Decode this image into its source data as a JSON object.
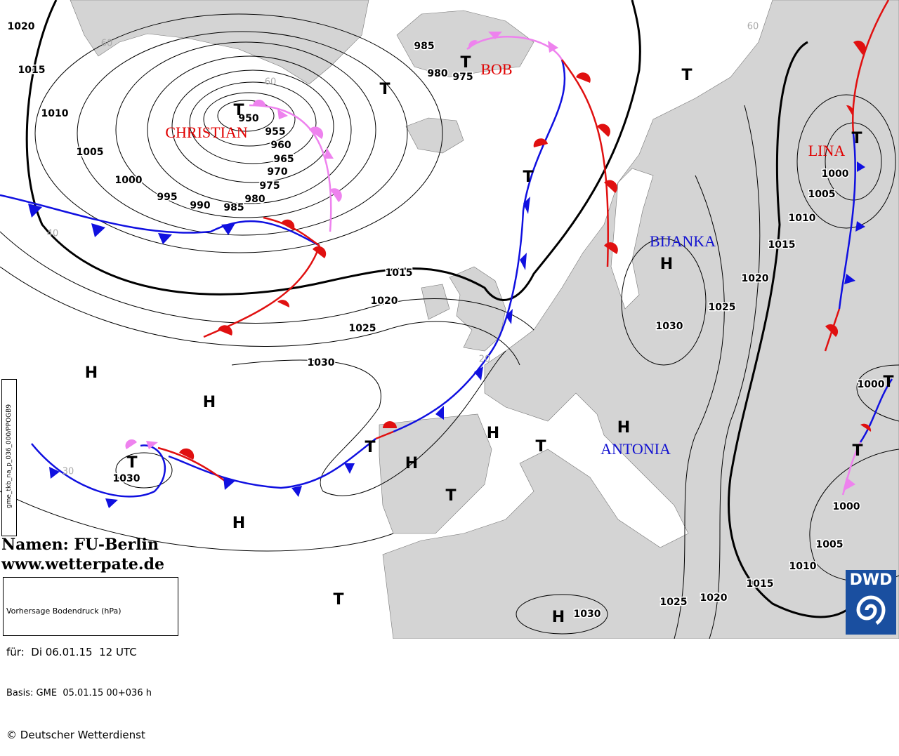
{
  "isobar_labels": [
    1020,
    1015,
    1010,
    1005,
    1000,
    995,
    990,
    985,
    980,
    975,
    970,
    965,
    960,
    955,
    950,
    985,
    980,
    975,
    1015,
    1020,
    1025,
    1030,
    1030,
    1030,
    1025,
    1020,
    1015,
    1010,
    1005,
    1000,
    1000,
    1000,
    1005,
    1010,
    1015,
    1020,
    1025,
    1030
  ],
  "pressure_systems": [
    "T",
    "T",
    "T",
    "T",
    "T",
    "T",
    "T",
    "T",
    "T",
    "T",
    "T",
    "T",
    "T",
    "H",
    "H",
    "H",
    "H",
    "H",
    "H",
    "H",
    "H"
  ],
  "names": [
    "CHRISTIAN",
    "BOB",
    "LINA",
    "BIJANKA",
    "ANTONIA"
  ],
  "latitude_labels": [
    "60",
    "60",
    "60",
    "40",
    "30",
    "20"
  ],
  "credits": {
    "names": "Namen: FU-Berlin",
    "website": "www.wetterpate.de"
  },
  "info_box": {
    "title": "Vorhersage Bodendruck (hPa)",
    "valid": "für:  Di 06.01.15  12 UTC",
    "basis": "Basis: GME  05.01.15 00+036 h",
    "copyright": "© Deutscher Wetterdienst"
  },
  "logo": "DWD",
  "product_id": "gme_tkb_na_p_036_000/PPOGB9"
}
